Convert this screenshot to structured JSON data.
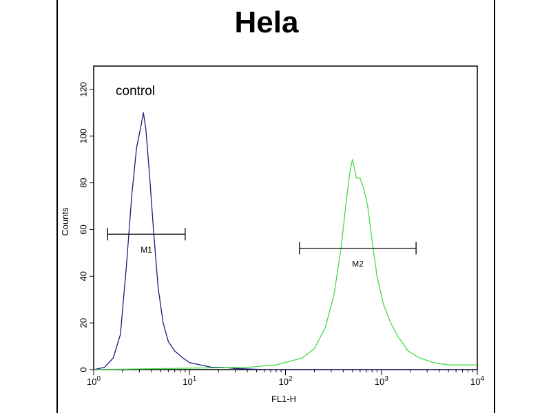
{
  "chart_data": {
    "type": "histogram",
    "title": "Hela",
    "xlabel": "FL1-H",
    "ylabel": "Counts",
    "x_scale": "log",
    "xlim": [
      1,
      10000
    ],
    "ylim": [
      0,
      130
    ],
    "x_ticks": [
      {
        "value": 1,
        "base": "10",
        "exp": "0"
      },
      {
        "value": 10,
        "base": "10",
        "exp": "1"
      },
      {
        "value": 100,
        "base": "10",
        "exp": "2"
      },
      {
        "value": 1000,
        "base": "10",
        "exp": "3"
      },
      {
        "value": 10000,
        "base": "10",
        "exp": "4"
      }
    ],
    "y_ticks": [
      0,
      20,
      40,
      60,
      80,
      100,
      120
    ],
    "annotation": "control",
    "series": [
      {
        "color": "#1a1a7a",
        "points": [
          [
            1.0,
            0
          ],
          [
            1.3,
            1
          ],
          [
            1.6,
            5
          ],
          [
            1.9,
            15
          ],
          [
            2.2,
            45
          ],
          [
            2.5,
            75
          ],
          [
            2.8,
            95
          ],
          [
            3.1,
            104
          ],
          [
            3.3,
            110
          ],
          [
            3.5,
            103
          ],
          [
            3.8,
            85
          ],
          [
            4.2,
            60
          ],
          [
            4.7,
            35
          ],
          [
            5.3,
            20
          ],
          [
            6.0,
            12
          ],
          [
            7.0,
            8
          ],
          [
            8.5,
            5
          ],
          [
            10,
            3
          ],
          [
            13,
            2
          ],
          [
            17,
            1
          ],
          [
            22,
            1
          ],
          [
            30,
            0.5
          ],
          [
            60,
            0
          ],
          [
            10000,
            0
          ]
        ]
      },
      {
        "color": "#44dd44",
        "points": [
          [
            1.0,
            0
          ],
          [
            40,
            1
          ],
          [
            80,
            2
          ],
          [
            150,
            5
          ],
          [
            200,
            9
          ],
          [
            260,
            18
          ],
          [
            320,
            32
          ],
          [
            380,
            52
          ],
          [
            430,
            72
          ],
          [
            470,
            85
          ],
          [
            500,
            90
          ],
          [
            550,
            82
          ],
          [
            600,
            82
          ],
          [
            650,
            78
          ],
          [
            720,
            70
          ],
          [
            800,
            55
          ],
          [
            900,
            40
          ],
          [
            1050,
            28
          ],
          [
            1250,
            20
          ],
          [
            1500,
            14
          ],
          [
            1900,
            8
          ],
          [
            2500,
            5
          ],
          [
            3500,
            3
          ],
          [
            5000,
            2
          ],
          [
            7000,
            2
          ],
          [
            10000,
            2
          ]
        ]
      }
    ],
    "markers": [
      {
        "label": "M1",
        "x_start": 1.4,
        "x_end": 9.0,
        "y": 58
      },
      {
        "label": "M2",
        "x_start": 140,
        "x_end": 2300,
        "y": 52
      }
    ]
  }
}
